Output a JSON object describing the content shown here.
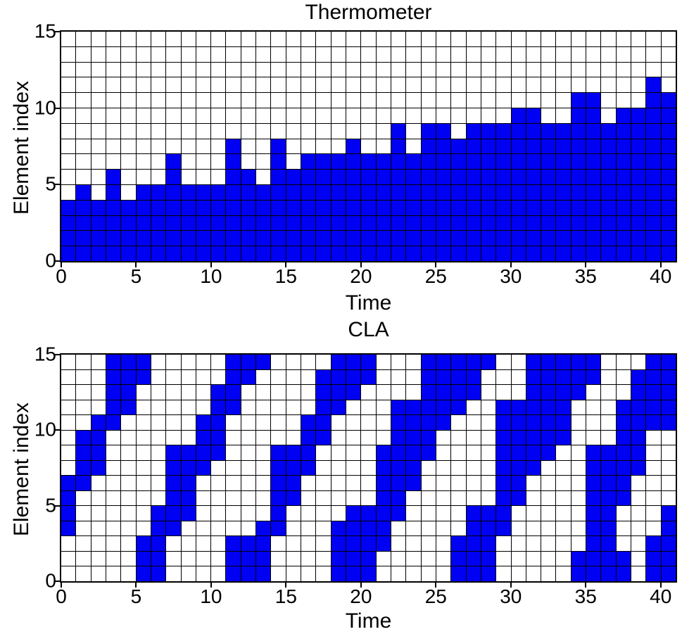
{
  "figure": {
    "background": "#ffffff",
    "active_color": "#0000f2",
    "grid_line_color": "#000000",
    "text_color": "#000000"
  },
  "chart_data": [
    {
      "type": "heatmap",
      "title": "Thermometer",
      "xlabel": "Time",
      "ylabel": "Element index",
      "encoding": "thermometer",
      "n_time_steps": 41,
      "n_elements": 15,
      "xlim": [
        0,
        41
      ],
      "ylim": [
        0,
        15
      ],
      "x_ticks": [
        0,
        5,
        10,
        15,
        20,
        25,
        30,
        35,
        40
      ],
      "y_ticks": [
        0,
        5,
        10,
        15
      ],
      "grid": true,
      "values_per_time": [
        4,
        5,
        4,
        6,
        4,
        5,
        5,
        7,
        5,
        5,
        5,
        8,
        6,
        5,
        8,
        6,
        7,
        7,
        7,
        8,
        7,
        7,
        9,
        7,
        9,
        9,
        8,
        9,
        9,
        9,
        10,
        10,
        9,
        9,
        11,
        11,
        9,
        10,
        10,
        12,
        11
      ]
    },
    {
      "type": "heatmap",
      "title": "CLA",
      "xlabel": "Time",
      "ylabel": "Element index",
      "encoding": "cla",
      "n_time_steps": 41,
      "n_elements": 15,
      "xlim": [
        0,
        41
      ],
      "ylim": [
        0,
        15
      ],
      "x_ticks": [
        0,
        5,
        10,
        15,
        20,
        25,
        30,
        35,
        40
      ],
      "y_ticks": [
        0,
        5,
        10,
        15
      ],
      "grid": true,
      "active_rows_per_time": [
        [
          3,
          4,
          5,
          6
        ],
        [
          6,
          7,
          8,
          9
        ],
        [
          7,
          8,
          9,
          10
        ],
        [
          10,
          11,
          12,
          13,
          14
        ],
        [
          11,
          12,
          13,
          14
        ],
        [
          0,
          1,
          2,
          13,
          14
        ],
        [
          0,
          1,
          2,
          3,
          4
        ],
        [
          3,
          4,
          5,
          6,
          7,
          8
        ],
        [
          4,
          5,
          6,
          7,
          8
        ],
        [
          7,
          8,
          9,
          10
        ],
        [
          8,
          9,
          10,
          11,
          12
        ],
        [
          0,
          1,
          2,
          11,
          12,
          13,
          14
        ],
        [
          0,
          1,
          2,
          13,
          14
        ],
        [
          0,
          1,
          2,
          3,
          14
        ],
        [
          3,
          4,
          5,
          6,
          7,
          8
        ],
        [
          5,
          6,
          7,
          8
        ],
        [
          7,
          8,
          9,
          10
        ],
        [
          9,
          10,
          11,
          12,
          13
        ],
        [
          0,
          1,
          2,
          3,
          11,
          12,
          13,
          14
        ],
        [
          0,
          1,
          2,
          3,
          4,
          12,
          13,
          14
        ],
        [
          0,
          1,
          2,
          3,
          4,
          13,
          14
        ],
        [
          2,
          3,
          4,
          5,
          6,
          7,
          8
        ],
        [
          4,
          5,
          6,
          7,
          8,
          9,
          10,
          11
        ],
        [
          6,
          7,
          8,
          9,
          10,
          11
        ],
        [
          8,
          9,
          10,
          11,
          12,
          13,
          14
        ],
        [
          10,
          11,
          12,
          13,
          14
        ],
        [
          0,
          1,
          2,
          11,
          12,
          13,
          14
        ],
        [
          0,
          1,
          2,
          3,
          4,
          12,
          13,
          14
        ],
        [
          0,
          1,
          2,
          3,
          4,
          14
        ],
        [
          3,
          4,
          5,
          6,
          7,
          8,
          9,
          10,
          11
        ],
        [
          5,
          6,
          7,
          8,
          9,
          10,
          11
        ],
        [
          7,
          8,
          9,
          10,
          11,
          12,
          13,
          14
        ],
        [
          8,
          9,
          10,
          11,
          12,
          13,
          14
        ],
        [
          9,
          10,
          11,
          12,
          13,
          14
        ],
        [
          0,
          1,
          12,
          13,
          14
        ],
        [
          0,
          1,
          2,
          3,
          4,
          5,
          6,
          7,
          8,
          13,
          14
        ],
        [
          0,
          1,
          2,
          3,
          4,
          5,
          6,
          7,
          8
        ],
        [
          0,
          1,
          5,
          6,
          7,
          8,
          9,
          10,
          11
        ],
        [
          7,
          8,
          9,
          10,
          11,
          12,
          13
        ],
        [
          0,
          1,
          2,
          10,
          11,
          12,
          13,
          14
        ],
        [
          0,
          1,
          2,
          3,
          4,
          10,
          11,
          12,
          13,
          14
        ]
      ]
    }
  ]
}
